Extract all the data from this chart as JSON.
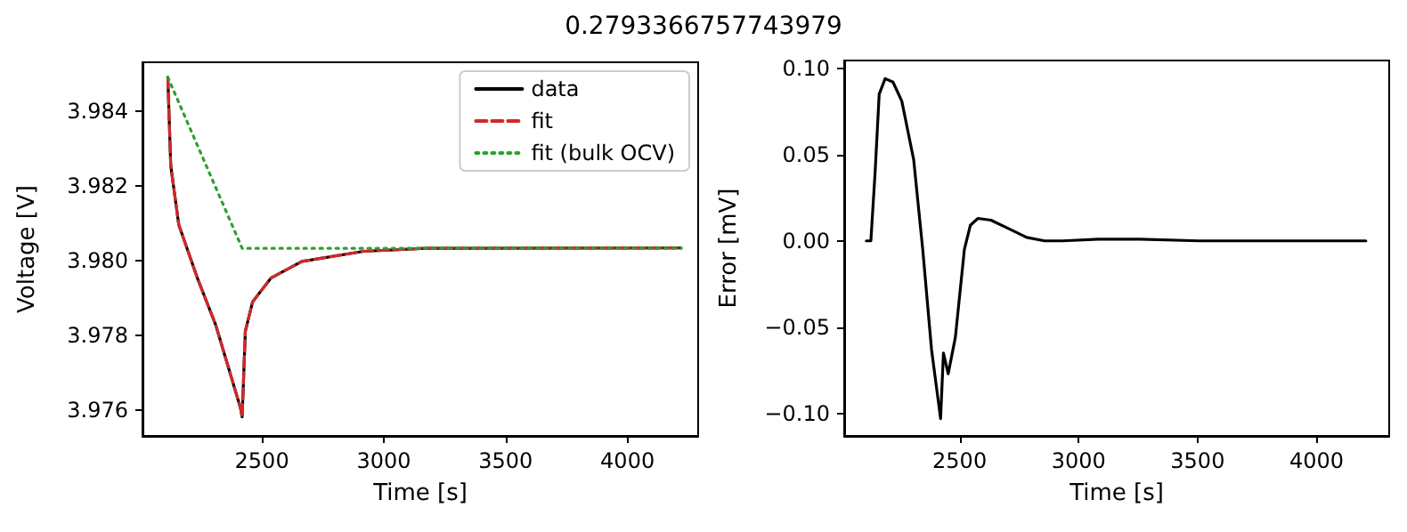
{
  "chart_data": [
    {
      "type": "line",
      "title": "0.2793366757743979",
      "xlabel": "Time [s]",
      "ylabel": "Voltage [V]",
      "xlim": [
        2010,
        4290
      ],
      "xticks": [
        2500,
        3000,
        3500,
        4000
      ],
      "ylim": [
        3.9753,
        3.9853
      ],
      "yticks": [
        {
          "value": 3.976,
          "label": "3.976"
        },
        {
          "value": 3.978,
          "label": "3.978"
        },
        {
          "value": 3.98,
          "label": "3.980"
        },
        {
          "value": 3.982,
          "label": "3.982"
        },
        {
          "value": 3.984,
          "label": "3.984"
        }
      ],
      "grid": false,
      "legend": "top right",
      "marker": "none",
      "series": [
        {
          "name": "data",
          "color": "#000000",
          "line_style": "solid",
          "x": [
            2114,
            2126,
            2159,
            2235,
            2311,
            2412,
            2419,
            2432,
            2462,
            2538,
            2664,
            2917,
            3169,
            4220
          ],
          "values": [
            3.9849,
            3.98253,
            3.98095,
            3.97953,
            3.97826,
            3.97605,
            3.97581,
            3.9781,
            3.97889,
            3.97953,
            3.97997,
            3.98024,
            3.98032,
            3.98033
          ]
        },
        {
          "name": "fit",
          "color": "#d62728",
          "line_style": "dashed",
          "x": [
            2114,
            2126,
            2159,
            2235,
            2311,
            2412,
            2419,
            2432,
            2462,
            2538,
            2664,
            2917,
            3169,
            4220
          ],
          "values": [
            3.9849,
            3.98253,
            3.98095,
            3.97953,
            3.97826,
            3.97605,
            3.97581,
            3.9781,
            3.97889,
            3.97953,
            3.97997,
            3.98024,
            3.98032,
            3.98033
          ]
        },
        {
          "name": "fit (bulk OCV)",
          "color": "#2ca02c",
          "line_style": "dotted",
          "x": [
            2114,
            2419,
            4220
          ],
          "values": [
            3.9849,
            3.98032,
            3.98032
          ]
        }
      ]
    },
    {
      "type": "line",
      "xlabel": "Time [s]",
      "ylabel": "Error [mV]",
      "xlim": [
        2015,
        4305
      ],
      "xticks": [
        2500,
        3000,
        3500,
        4000
      ],
      "ylim": [
        -0.113,
        0.1045
      ],
      "yticks": [
        {
          "value": -0.1,
          "label": "−0.10"
        },
        {
          "value": -0.05,
          "label": "−0.05"
        },
        {
          "value": 0,
          "label": "0.00"
        },
        {
          "value": 0.05,
          "label": "0.05"
        },
        {
          "value": 0.1,
          "label": "0.10"
        }
      ],
      "grid": false,
      "legend": false,
      "marker": "none",
      "series": [
        {
          "color": "#000000",
          "line_style": "solid",
          "x": [
            2108,
            2127,
            2145,
            2162,
            2187,
            2220,
            2257,
            2307,
            2345,
            2382,
            2420,
            2432,
            2452,
            2482,
            2520,
            2545,
            2577,
            2632,
            2707,
            2782,
            2857,
            2932,
            3082,
            3257,
            3507,
            4207
          ],
          "values": [
            0,
            0,
            0.04,
            0.085,
            0.094,
            0.092,
            0.081,
            0.047,
            -0.005,
            -0.063,
            -0.103,
            -0.065,
            -0.077,
            -0.056,
            -0.005,
            0.009,
            0.013,
            0.012,
            0.007,
            0.002,
            0,
            0,
            0.001,
            0.001,
            0,
            0
          ]
        }
      ]
    }
  ]
}
